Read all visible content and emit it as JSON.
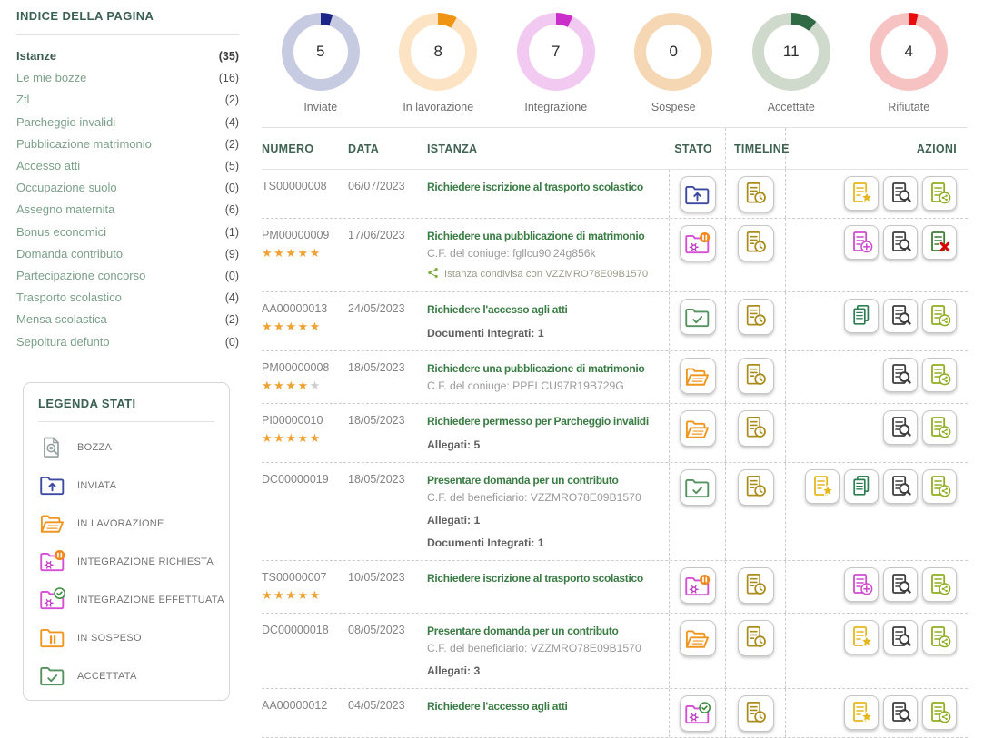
{
  "sidebar": {
    "title": "INDICE DELLA PAGINA",
    "items": [
      {
        "label": "Istanze",
        "count": "35",
        "active": true
      },
      {
        "label": "Le mie bozze",
        "count": "16",
        "active": false
      },
      {
        "label": "Ztl",
        "count": "2",
        "active": false
      },
      {
        "label": "Parcheggio invalidi",
        "count": "4",
        "active": false
      },
      {
        "label": "Pubblicazione matrimonio",
        "count": "2",
        "active": false
      },
      {
        "label": "Accesso atti",
        "count": "5",
        "active": false
      },
      {
        "label": "Occupazione suolo",
        "count": "0",
        "active": false
      },
      {
        "label": "Assegno maternita",
        "count": "6",
        "active": false
      },
      {
        "label": "Bonus economici",
        "count": "1",
        "active": false
      },
      {
        "label": "Domanda contributo",
        "count": "9",
        "active": false
      },
      {
        "label": "Partecipazione concorso",
        "count": "0",
        "active": false
      },
      {
        "label": "Trasporto scolastico",
        "count": "4",
        "active": false
      },
      {
        "label": "Mensa scolastica",
        "count": "2",
        "active": false
      },
      {
        "label": "Sepoltura defunto",
        "count": "0",
        "active": false
      }
    ]
  },
  "legend": {
    "title": "LEGENDA STATI",
    "items": [
      {
        "icon": "bozza",
        "label": "BOZZA"
      },
      {
        "icon": "inviata",
        "label": "INVIATA"
      },
      {
        "icon": "in-lavorazione",
        "label": "IN LAVORAZIONE"
      },
      {
        "icon": "integrazione-richiesta",
        "label": "INTEGRAZIONE RICHIESTA"
      },
      {
        "icon": "integrazione-effettuata",
        "label": "INTEGRAZIONE EFFETTUATA"
      },
      {
        "icon": "in-sospeso",
        "label": "IN SOSPESO"
      },
      {
        "icon": "accettata",
        "label": "ACCETTATA"
      }
    ]
  },
  "stats": [
    {
      "label": "Inviate",
      "value": 5,
      "percent": 5,
      "ring_color": "#c6cbe2",
      "segment_color": "#1c2488"
    },
    {
      "label": "In lavorazione",
      "value": 8,
      "percent": 8,
      "ring_color": "#fbe3c3",
      "segment_color": "#f09413"
    },
    {
      "label": "Integrazione",
      "value": 7,
      "percent": 7,
      "ring_color": "#f1c9f1",
      "segment_color": "#ca2fca"
    },
    {
      "label": "Sospese",
      "value": 0,
      "percent": 0,
      "ring_color": "#f5d7b4",
      "segment_color": "#e8951c"
    },
    {
      "label": "Accettate",
      "value": 11,
      "percent": 11,
      "ring_color": "#cfdacd",
      "segment_color": "#2f6a45"
    },
    {
      "label": "Rifiutate",
      "value": 4,
      "percent": 4,
      "ring_color": "#f6c2c2",
      "segment_color": "#e80c0c"
    }
  ],
  "table": {
    "headers": [
      "NUMERO",
      "DATA",
      "ISTANZA",
      "STATO",
      "TIMELINE",
      "AZIONI"
    ],
    "rows": [
      {
        "numero": "TS00000008",
        "stars": null,
        "data": "06/07/2023",
        "titolo": "Richiedere iscrizione al trasporto scolastico",
        "details": [],
        "shared": null,
        "stato": "inviata",
        "actions": [
          "star",
          "search",
          "share"
        ]
      },
      {
        "numero": "PM00000009",
        "stars": 5,
        "data": "17/06/2023",
        "titolo": "Richiedere una pubblicazione di matrimonio",
        "details": [
          {
            "text": "C.F. del coniuge: fgllcu90l24g856k",
            "emph": false
          }
        ],
        "shared": "Istanza condivisa con VZZMRO78E09B1570",
        "stato": "integrazione-richiesta",
        "actions": [
          "plus",
          "search",
          "delete"
        ]
      },
      {
        "numero": "AA00000013",
        "stars": 5,
        "data": "24/05/2023",
        "titolo": "Richiedere l'accesso agli atti",
        "details": [
          {
            "text": "Documenti Integrati: 1",
            "emph": true
          }
        ],
        "shared": null,
        "stato": "accettata",
        "actions": [
          "copy",
          "search",
          "share"
        ]
      },
      {
        "numero": "PM00000008",
        "stars": 4,
        "data": "18/05/2023",
        "titolo": "Richiedere una pubblicazione di matrimonio",
        "details": [
          {
            "text": "C.F. del coniuge: PPELCU97R19B729G",
            "emph": false
          }
        ],
        "shared": null,
        "stato": "in-lavorazione",
        "actions": [
          "search",
          "share"
        ]
      },
      {
        "numero": "PI00000010",
        "stars": 5,
        "data": "18/05/2023",
        "titolo": "Richiedere permesso per Parcheggio invalidi",
        "details": [
          {
            "text": "Allegati: 5",
            "emph": true
          }
        ],
        "shared": null,
        "stato": "in-lavorazione",
        "actions": [
          "search",
          "share"
        ]
      },
      {
        "numero": "DC00000019",
        "stars": null,
        "data": "18/05/2023",
        "titolo": "Presentare domanda per un contributo",
        "details": [
          {
            "text": "C.F. del beneficiario: VZZMRO78E09B1570",
            "emph": false
          },
          {
            "text": "Allegati: 1",
            "emph": true
          },
          {
            "text": "Documenti Integrati: 1",
            "emph": true
          }
        ],
        "shared": null,
        "stato": "accettata",
        "actions": [
          "star",
          "copy",
          "search",
          "share"
        ]
      },
      {
        "numero": "TS00000007",
        "stars": 5,
        "data": "10/05/2023",
        "titolo": "Richiedere iscrizione al trasporto scolastico",
        "details": [],
        "shared": null,
        "stato": "integrazione-richiesta",
        "actions": [
          "plus",
          "search",
          "share"
        ]
      },
      {
        "numero": "DC00000018",
        "stars": null,
        "data": "08/05/2023",
        "titolo": "Presentare domanda per un contributo",
        "details": [
          {
            "text": "C.F. del beneficiario: VZZMRO78E09B1570",
            "emph": false
          },
          {
            "text": "Allegati: 3",
            "emph": true
          }
        ],
        "shared": null,
        "stato": "in-lavorazione",
        "actions": [
          "star",
          "search",
          "share"
        ]
      },
      {
        "numero": "AA00000012",
        "stars": null,
        "data": "04/05/2023",
        "titolo": "Richiedere l'accesso agli atti",
        "details": [],
        "shared": null,
        "stato": "integrazione-effettuata",
        "actions": [
          "star",
          "search",
          "share"
        ]
      }
    ]
  }
}
